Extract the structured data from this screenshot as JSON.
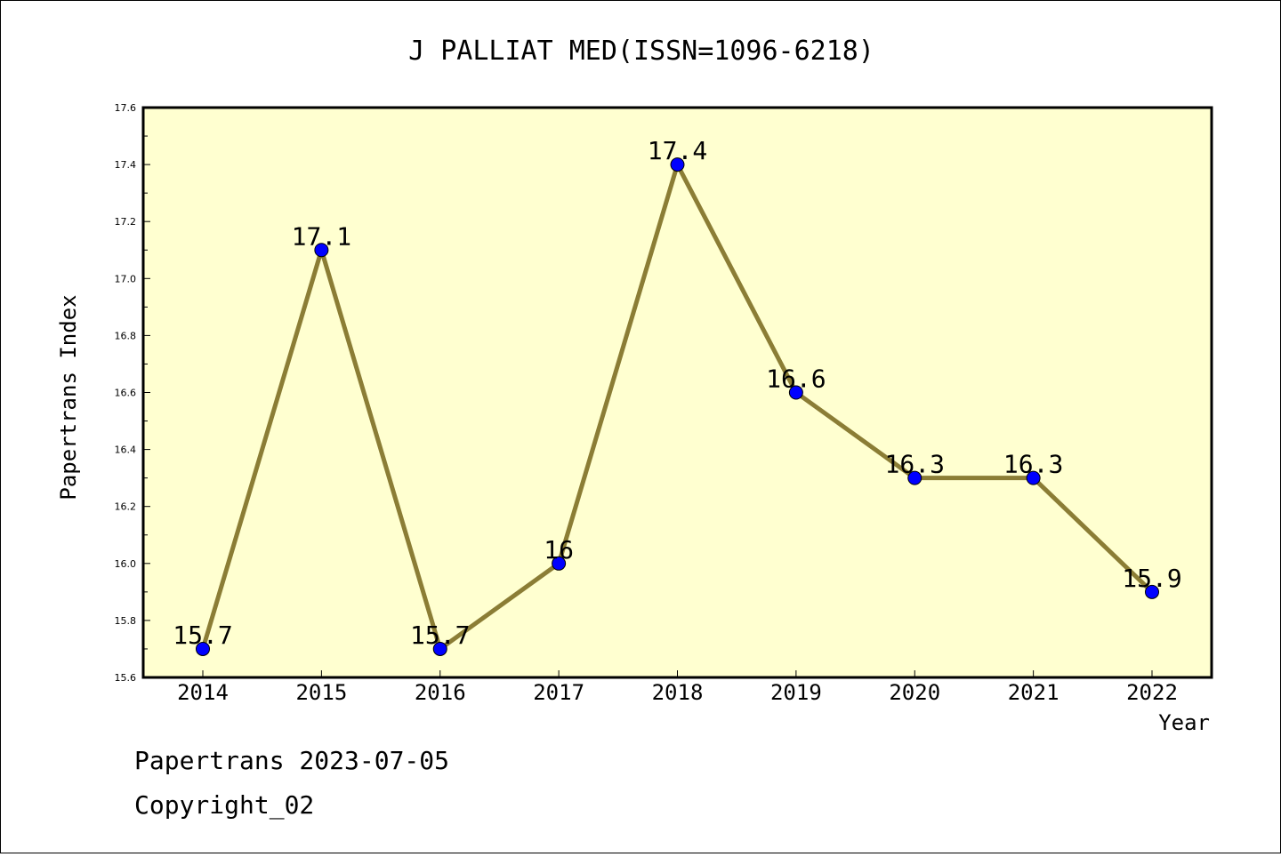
{
  "chart_data": {
    "type": "line",
    "title": "J PALLIAT MED(ISSN=1096-6218)",
    "xlabel": "Year",
    "ylabel": "Papertrans Index",
    "x": [
      "2014",
      "2015",
      "2016",
      "2017",
      "2018",
      "2019",
      "2020",
      "2021",
      "2022"
    ],
    "y": [
      15.7,
      17.1,
      15.7,
      16.0,
      17.4,
      16.6,
      16.3,
      16.3,
      15.9
    ],
    "data_labels": [
      "15.7",
      "17.1",
      "15.7",
      "16",
      "17.4",
      "16.6",
      "16.3",
      "16.3",
      "15.9"
    ],
    "ylim": [
      15.6,
      17.6
    ],
    "yticks": [
      "15.6",
      "15.8",
      "16.0",
      "16.2",
      "16.4",
      "16.6",
      "16.8",
      "17.0",
      "17.2",
      "17.4",
      "17.6"
    ],
    "grid": false,
    "colors": {
      "plot_background": "#ffffd0",
      "line": "#8b7d35",
      "marker": "#0000ff"
    }
  },
  "footer": {
    "line1": "Papertrans 2023-07-05",
    "line2": "Copyright_02"
  }
}
